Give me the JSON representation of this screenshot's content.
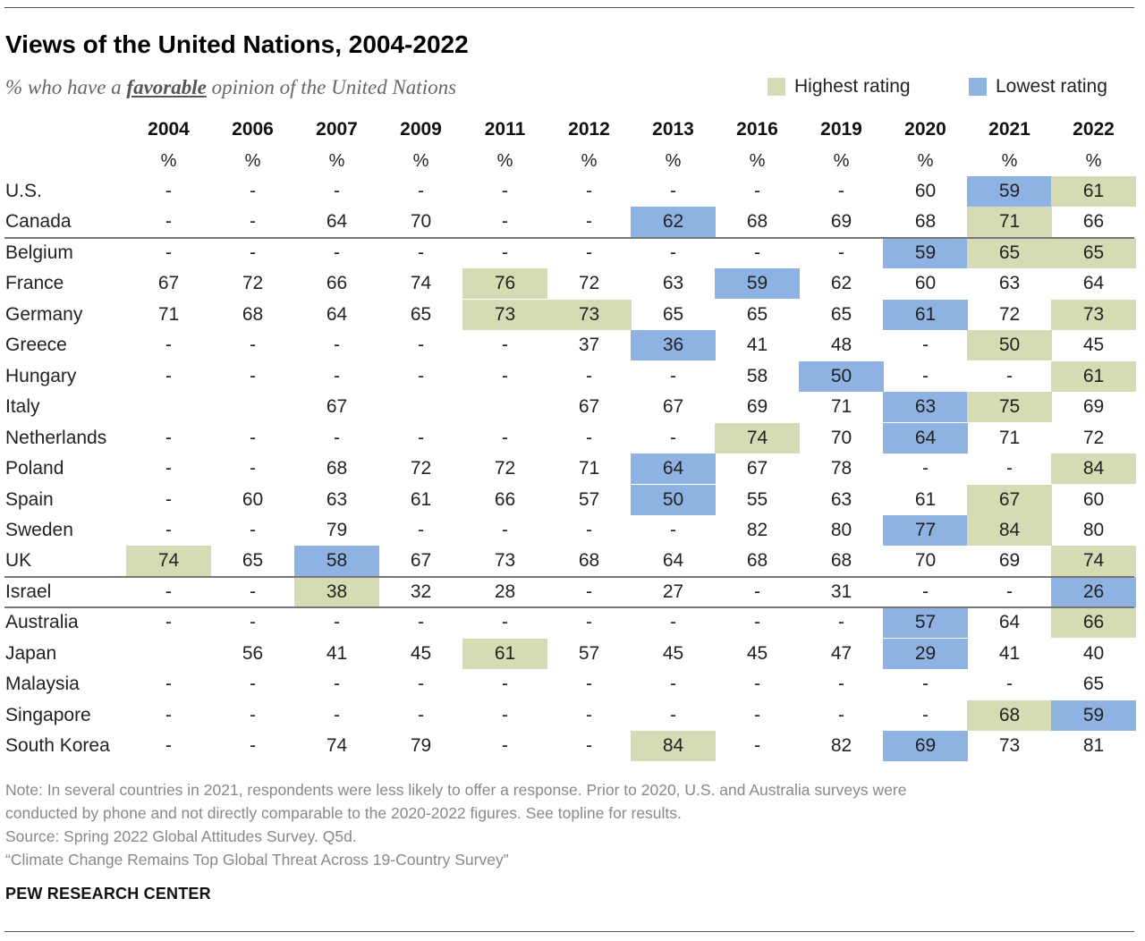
{
  "header": {
    "title": "Views of the United Nations, 2004-2022",
    "subtitle_pre": "% who have a ",
    "subtitle_emph": "favorable",
    "subtitle_post": " opinion of the United Nations"
  },
  "legend": {
    "highest_label": "Highest rating",
    "lowest_label": "Lowest rating",
    "highest_color": "#d6dbb3",
    "lowest_color": "#8eb3e3"
  },
  "chart_data": {
    "type": "table",
    "title": "Views of the United Nations, 2004-2022",
    "unit_row": [
      "%",
      "%",
      "%",
      "%",
      "%",
      "%",
      "%",
      "%",
      "%",
      "%",
      "%",
      "%"
    ],
    "columns": [
      "2004",
      "2006",
      "2007",
      "2009",
      "2011",
      "2012",
      "2013",
      "2016",
      "2019",
      "2020",
      "2021",
      "2022"
    ],
    "rows": [
      {
        "country": "U.S.",
        "values": [
          "-",
          "-",
          "-",
          "-",
          "-",
          "-",
          "-",
          "-",
          "-",
          "60",
          "59",
          "61"
        ],
        "highest": [
          11
        ],
        "lowest": [
          10
        ]
      },
      {
        "country": "Canada",
        "values": [
          "-",
          "-",
          "64",
          "70",
          "-",
          "-",
          "62",
          "68",
          "69",
          "68",
          "71",
          "66"
        ],
        "highest": [
          10
        ],
        "lowest": [
          6
        ]
      },
      {
        "country": "Belgium",
        "values": [
          "-",
          "-",
          "-",
          "-",
          "-",
          "-",
          "-",
          "-",
          "-",
          "59",
          "65",
          "65"
        ],
        "highest": [
          10,
          11
        ],
        "lowest": [
          9
        ]
      },
      {
        "country": "France",
        "values": [
          "67",
          "72",
          "66",
          "74",
          "76",
          "72",
          "63",
          "59",
          "62",
          "60",
          "63",
          "64"
        ],
        "highest": [
          4
        ],
        "lowest": [
          7
        ]
      },
      {
        "country": "Germany",
        "values": [
          "71",
          "68",
          "64",
          "65",
          "73",
          "73",
          "65",
          "65",
          "65",
          "61",
          "72",
          "73"
        ],
        "highest": [
          4,
          5,
          11
        ],
        "lowest": [
          9
        ]
      },
      {
        "country": "Greece",
        "values": [
          "-",
          "-",
          "-",
          "-",
          "-",
          "37",
          "36",
          "41",
          "48",
          "-",
          "50",
          "45"
        ],
        "highest": [
          10
        ],
        "lowest": [
          6
        ]
      },
      {
        "country": "Hungary",
        "values": [
          "-",
          "-",
          "-",
          "-",
          "-",
          "-",
          "-",
          "58",
          "50",
          "-",
          "-",
          "61"
        ],
        "highest": [
          11
        ],
        "lowest": [
          8
        ]
      },
      {
        "country": "Italy",
        "values": [
          "",
          "",
          "67",
          "",
          "",
          "67",
          "67",
          "69",
          "71",
          "63",
          "75",
          "69"
        ],
        "highest": [
          10
        ],
        "lowest": [
          9
        ]
      },
      {
        "country": "Netherlands",
        "values": [
          "-",
          "-",
          "-",
          "-",
          "-",
          "-",
          "-",
          "74",
          "70",
          "64",
          "71",
          "72"
        ],
        "highest": [
          7
        ],
        "lowest": [
          9
        ]
      },
      {
        "country": "Poland",
        "values": [
          "-",
          "-",
          "68",
          "72",
          "72",
          "71",
          "64",
          "67",
          "78",
          "-",
          "-",
          "84"
        ],
        "highest": [
          11
        ],
        "lowest": [
          6
        ]
      },
      {
        "country": "Spain",
        "values": [
          "-",
          "60",
          "63",
          "61",
          "66",
          "57",
          "50",
          "55",
          "63",
          "61",
          "67",
          "60"
        ],
        "highest": [
          10
        ],
        "lowest": [
          6
        ]
      },
      {
        "country": "Sweden",
        "values": [
          "-",
          "-",
          "79",
          "-",
          "-",
          "-",
          "-",
          "82",
          "80",
          "77",
          "84",
          "80"
        ],
        "highest": [
          10
        ],
        "lowest": [
          9
        ]
      },
      {
        "country": "UK",
        "values": [
          "74",
          "65",
          "58",
          "67",
          "73",
          "68",
          "64",
          "68",
          "68",
          "70",
          "69",
          "74"
        ],
        "highest": [
          0,
          11
        ],
        "lowest": [
          2
        ]
      },
      {
        "country": "Israel",
        "values": [
          "-",
          "-",
          "38",
          "32",
          "28",
          "-",
          "27",
          "-",
          "31",
          "-",
          "-",
          "26"
        ],
        "highest": [
          2
        ],
        "lowest": [
          11
        ]
      },
      {
        "country": "Australia",
        "values": [
          "-",
          "-",
          "-",
          "-",
          "-",
          "-",
          "-",
          "-",
          "-",
          "57",
          "64",
          "66"
        ],
        "highest": [
          11
        ],
        "lowest": [
          9
        ]
      },
      {
        "country": "Japan",
        "values": [
          "",
          "56",
          "41",
          "45",
          "61",
          "57",
          "45",
          "45",
          "47",
          "29",
          "41",
          "40"
        ],
        "highest": [
          4
        ],
        "lowest": [
          9
        ]
      },
      {
        "country": "Malaysia",
        "values": [
          "-",
          "-",
          "-",
          "-",
          "-",
          "-",
          "-",
          "-",
          "-",
          "-",
          "-",
          "65"
        ],
        "highest": [],
        "lowest": []
      },
      {
        "country": "Singapore",
        "values": [
          "-",
          "-",
          "-",
          "-",
          "-",
          "-",
          "-",
          "-",
          "-",
          "-",
          "68",
          "59"
        ],
        "highest": [
          10
        ],
        "lowest": [
          11
        ]
      },
      {
        "country": "South Korea",
        "values": [
          "-",
          "-",
          "74",
          "79",
          "-",
          "-",
          "84",
          "-",
          "82",
          "69",
          "73",
          "81"
        ],
        "highest": [
          6
        ],
        "lowest": [
          9
        ]
      }
    ],
    "group_dividers_after_rows": [
      1,
      12,
      13
    ]
  },
  "footer": {
    "note_line1": "Note: In several countries in 2021, respondents were less likely to offer a response. Prior to 2020, U.S. and Australia surveys were",
    "note_line2": "conducted by phone and not directly comparable to the 2020-2022 figures. See topline for results.",
    "source": "Source: Spring 2022 Global Attitudes Survey. Q5d.",
    "report": "“Climate Change Remains Top Global Threat Across 19-Country Survey”",
    "brand": "PEW RESEARCH CENTER"
  }
}
